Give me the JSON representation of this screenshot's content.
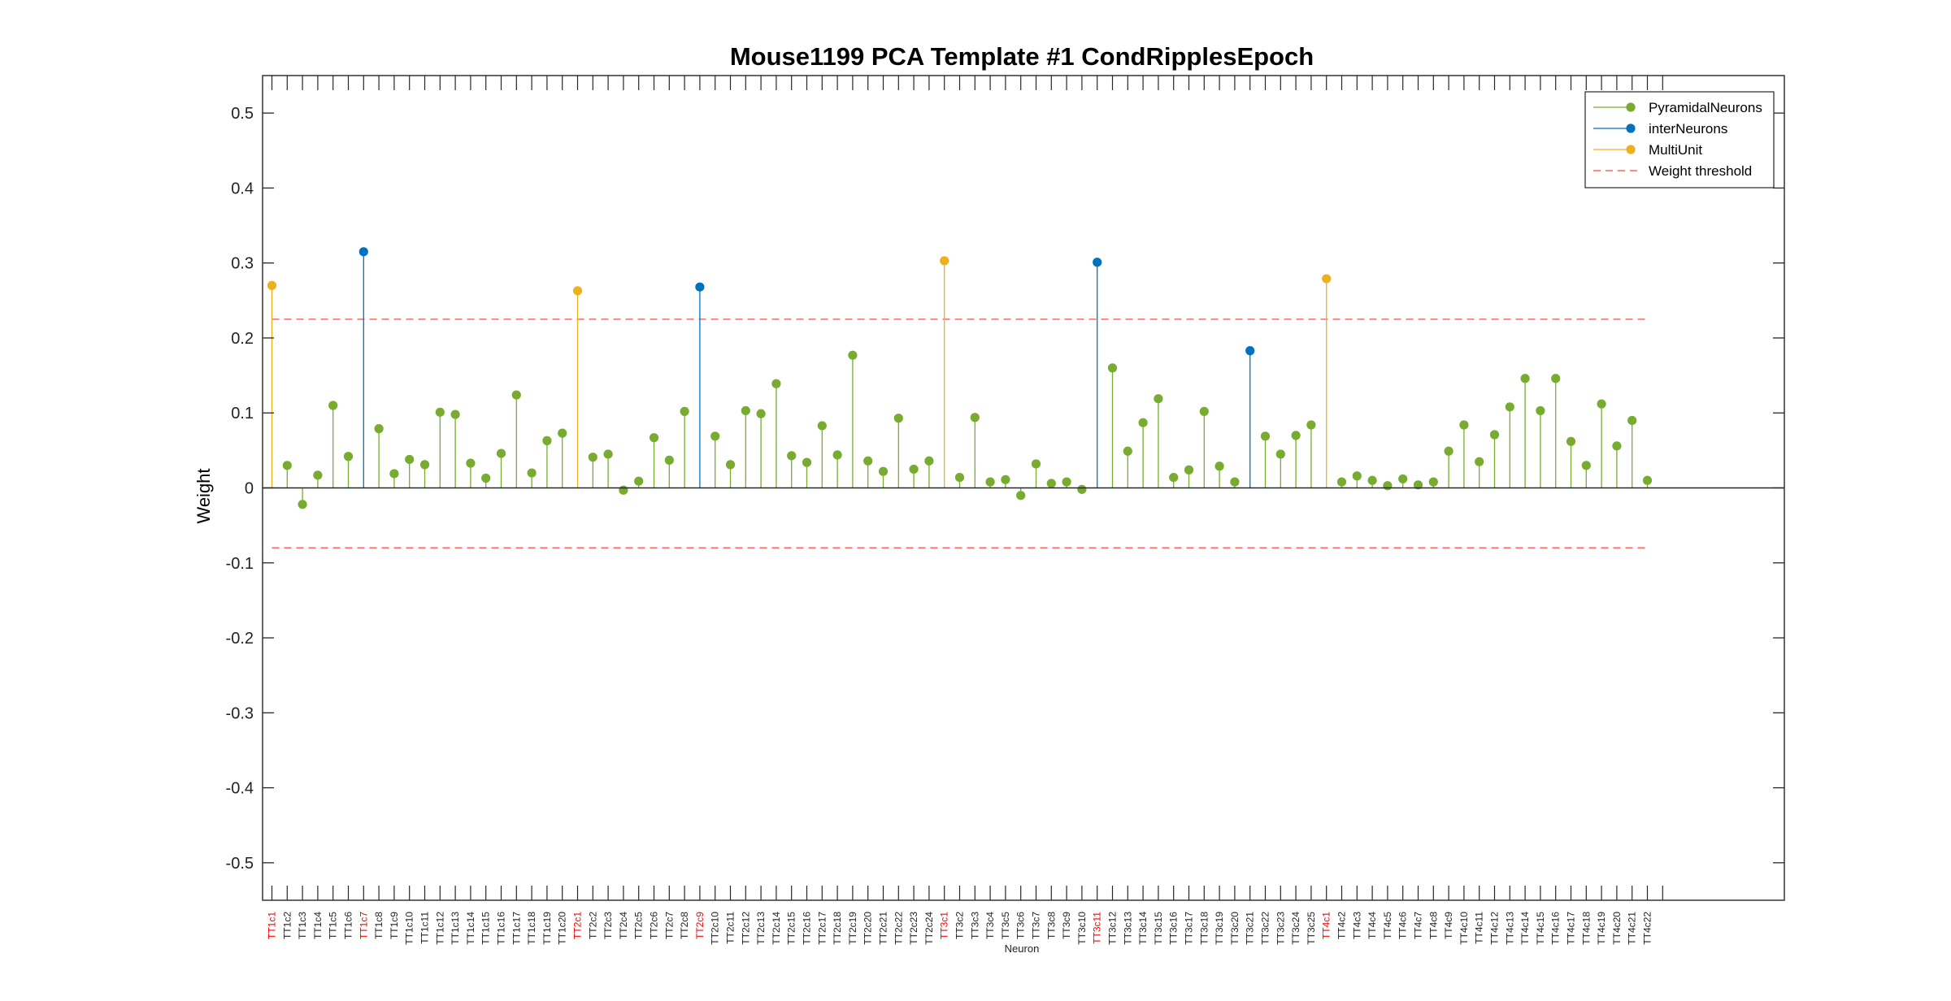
{
  "chart_data": {
    "type": "stem",
    "title": "Mouse1199 PCA Template #1 CondRipplesEpoch",
    "xlabel": "Neuron",
    "ylabel": "Weight",
    "ylim": [
      -0.55,
      0.55
    ],
    "yticks": [
      -0.5,
      -0.4,
      -0.3,
      -0.2,
      -0.1,
      0,
      0.1,
      0.2,
      0.3,
      0.4,
      0.5
    ],
    "ytick_labels": [
      "-0.5",
      "-0.4",
      "-0.3",
      "-0.2",
      "-0.1",
      "0",
      "0.1",
      "0.2",
      "0.3",
      "0.4",
      "0.5"
    ],
    "x_extra_slots": 1,
    "legend": {
      "position": "top-right",
      "entries": [
        {
          "label": "PyramidalNeurons",
          "style": "stem",
          "color": "#77AC30"
        },
        {
          "label": "interNeurons",
          "style": "stem",
          "color": "#0072BD"
        },
        {
          "label": "MultiUnit",
          "style": "stem",
          "color": "#EDB120"
        },
        {
          "label": "Weight threshold",
          "style": "dashed",
          "color": "#FF6666"
        }
      ]
    },
    "thresholds": [
      0.225,
      -0.08
    ],
    "colors": {
      "pyramidal": "#77AC30",
      "inter": "#0072BD",
      "multi": "#EDB120",
      "threshold": "#FF6666",
      "highlight_label": "#FF0000",
      "normal_label": "#222222"
    },
    "neurons": [
      {
        "label": "TT1c1",
        "value": 0.27,
        "type": "multi"
      },
      {
        "label": "TT1c2",
        "value": 0.03,
        "type": "pyramidal"
      },
      {
        "label": "TT1c3",
        "value": -0.022,
        "type": "pyramidal"
      },
      {
        "label": "TT1c4",
        "value": 0.017,
        "type": "pyramidal"
      },
      {
        "label": "TT1c5",
        "value": 0.11,
        "type": "pyramidal"
      },
      {
        "label": "TT1c6",
        "value": 0.042,
        "type": "pyramidal"
      },
      {
        "label": "TT1c7",
        "value": 0.315,
        "type": "inter"
      },
      {
        "label": "TT1c8",
        "value": 0.079,
        "type": "pyramidal"
      },
      {
        "label": "TT1c9",
        "value": 0.019,
        "type": "pyramidal"
      },
      {
        "label": "TT1c10",
        "value": 0.038,
        "type": "pyramidal"
      },
      {
        "label": "TT1c11",
        "value": 0.031,
        "type": "pyramidal"
      },
      {
        "label": "TT1c12",
        "value": 0.101,
        "type": "pyramidal"
      },
      {
        "label": "TT1c13",
        "value": 0.098,
        "type": "pyramidal"
      },
      {
        "label": "TT1c14",
        "value": 0.033,
        "type": "pyramidal"
      },
      {
        "label": "TT1c15",
        "value": 0.013,
        "type": "pyramidal"
      },
      {
        "label": "TT1c16",
        "value": 0.046,
        "type": "pyramidal"
      },
      {
        "label": "TT1c17",
        "value": 0.124,
        "type": "pyramidal"
      },
      {
        "label": "TT1c18",
        "value": 0.02,
        "type": "pyramidal"
      },
      {
        "label": "TT1c19",
        "value": 0.063,
        "type": "pyramidal"
      },
      {
        "label": "TT1c20",
        "value": 0.073,
        "type": "pyramidal"
      },
      {
        "label": "TT2c1",
        "value": 0.263,
        "type": "multi"
      },
      {
        "label": "TT2c2",
        "value": 0.041,
        "type": "pyramidal"
      },
      {
        "label": "TT2c3",
        "value": 0.045,
        "type": "pyramidal"
      },
      {
        "label": "TT2c4",
        "value": -0.003,
        "type": "pyramidal"
      },
      {
        "label": "TT2c5",
        "value": 0.009,
        "type": "pyramidal"
      },
      {
        "label": "TT2c6",
        "value": 0.067,
        "type": "pyramidal"
      },
      {
        "label": "TT2c7",
        "value": 0.037,
        "type": "pyramidal"
      },
      {
        "label": "TT2c8",
        "value": 0.102,
        "type": "pyramidal"
      },
      {
        "label": "TT2c9",
        "value": 0.268,
        "type": "inter"
      },
      {
        "label": "TT2c10",
        "value": 0.069,
        "type": "pyramidal"
      },
      {
        "label": "TT2c11",
        "value": 0.031,
        "type": "pyramidal"
      },
      {
        "label": "TT2c12",
        "value": 0.103,
        "type": "pyramidal"
      },
      {
        "label": "TT2c13",
        "value": 0.099,
        "type": "pyramidal"
      },
      {
        "label": "TT2c14",
        "value": 0.139,
        "type": "pyramidal"
      },
      {
        "label": "TT2c15",
        "value": 0.043,
        "type": "pyramidal"
      },
      {
        "label": "TT2c16",
        "value": 0.034,
        "type": "pyramidal"
      },
      {
        "label": "TT2c17",
        "value": 0.083,
        "type": "pyramidal"
      },
      {
        "label": "TT2c18",
        "value": 0.044,
        "type": "pyramidal"
      },
      {
        "label": "TT2c19",
        "value": 0.177,
        "type": "pyramidal"
      },
      {
        "label": "TT2c20",
        "value": 0.036,
        "type": "pyramidal"
      },
      {
        "label": "TT2c21",
        "value": 0.022,
        "type": "pyramidal"
      },
      {
        "label": "TT2c22",
        "value": 0.093,
        "type": "pyramidal"
      },
      {
        "label": "TT2c23",
        "value": 0.025,
        "type": "pyramidal"
      },
      {
        "label": "TT2c24",
        "value": 0.036,
        "type": "pyramidal"
      },
      {
        "label": "TT3c1",
        "value": 0.303,
        "type": "multi"
      },
      {
        "label": "TT3c2",
        "value": 0.014,
        "type": "pyramidal"
      },
      {
        "label": "TT3c3",
        "value": 0.094,
        "type": "pyramidal"
      },
      {
        "label": "TT3c4",
        "value": 0.008,
        "type": "pyramidal"
      },
      {
        "label": "TT3c5",
        "value": 0.011,
        "type": "pyramidal"
      },
      {
        "label": "TT3c6",
        "value": -0.01,
        "type": "pyramidal"
      },
      {
        "label": "TT3c7",
        "value": 0.032,
        "type": "pyramidal"
      },
      {
        "label": "TT3c8",
        "value": 0.006,
        "type": "pyramidal"
      },
      {
        "label": "TT3c9",
        "value": 0.008,
        "type": "pyramidal"
      },
      {
        "label": "TT3c10",
        "value": -0.002,
        "type": "pyramidal"
      },
      {
        "label": "TT3c11",
        "value": 0.301,
        "type": "inter"
      },
      {
        "label": "TT3c12",
        "value": 0.16,
        "type": "pyramidal"
      },
      {
        "label": "TT3c13",
        "value": 0.049,
        "type": "pyramidal"
      },
      {
        "label": "TT3c14",
        "value": 0.087,
        "type": "pyramidal"
      },
      {
        "label": "TT3c15",
        "value": 0.119,
        "type": "pyramidal"
      },
      {
        "label": "TT3c16",
        "value": 0.014,
        "type": "pyramidal"
      },
      {
        "label": "TT3c17",
        "value": 0.024,
        "type": "pyramidal"
      },
      {
        "label": "TT3c18",
        "value": 0.102,
        "type": "pyramidal"
      },
      {
        "label": "TT3c19",
        "value": 0.029,
        "type": "pyramidal"
      },
      {
        "label": "TT3c20",
        "value": 0.008,
        "type": "pyramidal"
      },
      {
        "label": "TT3c21",
        "value": 0.183,
        "type": "inter"
      },
      {
        "label": "TT3c22",
        "value": 0.069,
        "type": "pyramidal"
      },
      {
        "label": "TT3c23",
        "value": 0.045,
        "type": "pyramidal"
      },
      {
        "label": "TT3c24",
        "value": 0.07,
        "type": "pyramidal"
      },
      {
        "label": "TT3c25",
        "value": 0.084,
        "type": "pyramidal"
      },
      {
        "label": "TT4c1",
        "value": 0.279,
        "type": "multi"
      },
      {
        "label": "TT4c2",
        "value": 0.008,
        "type": "pyramidal"
      },
      {
        "label": "TT4c3",
        "value": 0.016,
        "type": "pyramidal"
      },
      {
        "label": "TT4c4",
        "value": 0.01,
        "type": "pyramidal"
      },
      {
        "label": "TT4c5",
        "value": 0.003,
        "type": "pyramidal"
      },
      {
        "label": "TT4c6",
        "value": 0.012,
        "type": "pyramidal"
      },
      {
        "label": "TT4c7",
        "value": 0.004,
        "type": "pyramidal"
      },
      {
        "label": "TT4c8",
        "value": 0.008,
        "type": "pyramidal"
      },
      {
        "label": "TT4c9",
        "value": 0.049,
        "type": "pyramidal"
      },
      {
        "label": "TT4c10",
        "value": 0.084,
        "type": "pyramidal"
      },
      {
        "label": "TT4c11",
        "value": 0.035,
        "type": "pyramidal"
      },
      {
        "label": "TT4c12",
        "value": 0.071,
        "type": "pyramidal"
      },
      {
        "label": "TT4c13",
        "value": 0.108,
        "type": "pyramidal"
      },
      {
        "label": "TT4c14",
        "value": 0.146,
        "type": "pyramidal"
      },
      {
        "label": "TT4c15",
        "value": 0.103,
        "type": "pyramidal"
      },
      {
        "label": "TT4c16",
        "value": 0.146,
        "type": "pyramidal"
      },
      {
        "label": "TT4c17",
        "value": 0.062,
        "type": "pyramidal"
      },
      {
        "label": "TT4c18",
        "value": 0.03,
        "type": "pyramidal"
      },
      {
        "label": "TT4c19",
        "value": 0.112,
        "type": "pyramidal"
      },
      {
        "label": "TT4c20",
        "value": 0.056,
        "type": "pyramidal"
      },
      {
        "label": "TT4c21",
        "value": 0.09,
        "type": "pyramidal"
      },
      {
        "label": "TT4c22",
        "value": 0.01,
        "type": "pyramidal"
      }
    ],
    "highlighted_labels": [
      "TT1c1",
      "TT1c7",
      "TT2c1",
      "TT2c9",
      "TT3c1",
      "TT3c11",
      "TT4c1"
    ]
  }
}
